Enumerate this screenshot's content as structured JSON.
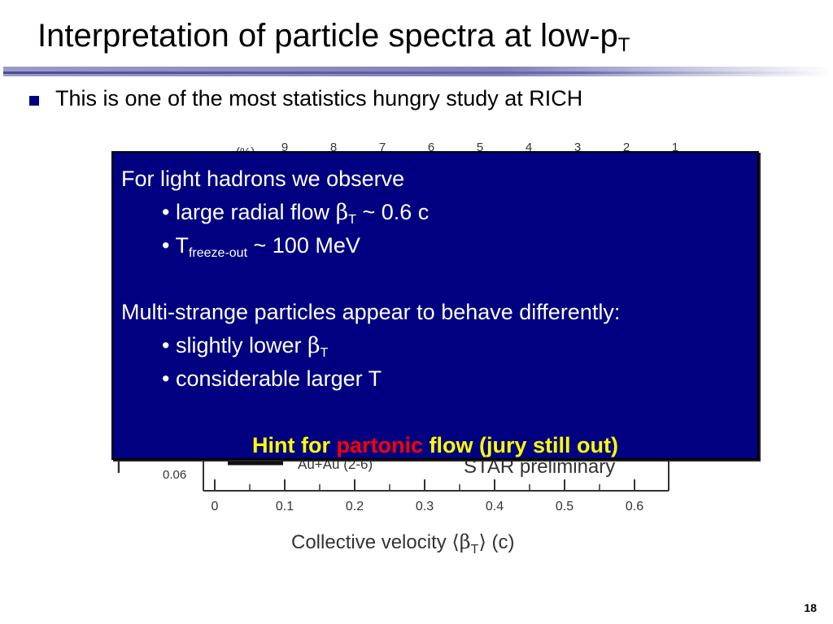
{
  "title": {
    "main": "Interpretation of particle spectra at low-p",
    "sub": "T"
  },
  "bullet": "This is one of the most statistics hungry study at RICH",
  "overlay": {
    "heading": "For light hadrons we observe",
    "item1_prefix": "• large radial flow ",
    "item1_greek": "β",
    "item1_sub": "T",
    "item1_suffix": " ~ 0.6 c",
    "item2_prefix": "• T",
    "item2_sub": "freeze-out",
    "item2_suffix": " ~ 100 MeV",
    "heading2": "Multi-strange particles appear to behave differently:",
    "item3_prefix": "• slightly lower ",
    "item3_greek": "β",
    "item3_sub": "T",
    "item4": "• considerable larger T",
    "hint_part1": "Hint for ",
    "hint_part2": "partonic",
    "hint_part3": " flow (jury still out)"
  },
  "chart_data": {
    "type": "scatter",
    "x_ticks": [
      "0",
      "0.1",
      "0.2",
      "0.3",
      "0.4",
      "0.5",
      "0.6"
    ],
    "top_ticks": [
      "9",
      "8",
      "7",
      "6",
      "5",
      "4",
      "3",
      "2",
      "1"
    ],
    "y_tick_label": "0.06",
    "top_axis_label": "(%)",
    "xlabel_prefix": "Collective velocity ",
    "xlabel_greek": "β",
    "xlabel_sub": "T",
    "xlabel_suffix": " (c)",
    "legend_entry": "Au+Au (2-6)",
    "annotation": "STAR preliminary"
  },
  "page_number": "18",
  "colors": {
    "overlay_bg": "#000080",
    "hint_yellow": "#ffff00",
    "hint_red": "#ff0000",
    "bullet": "#000080"
  }
}
